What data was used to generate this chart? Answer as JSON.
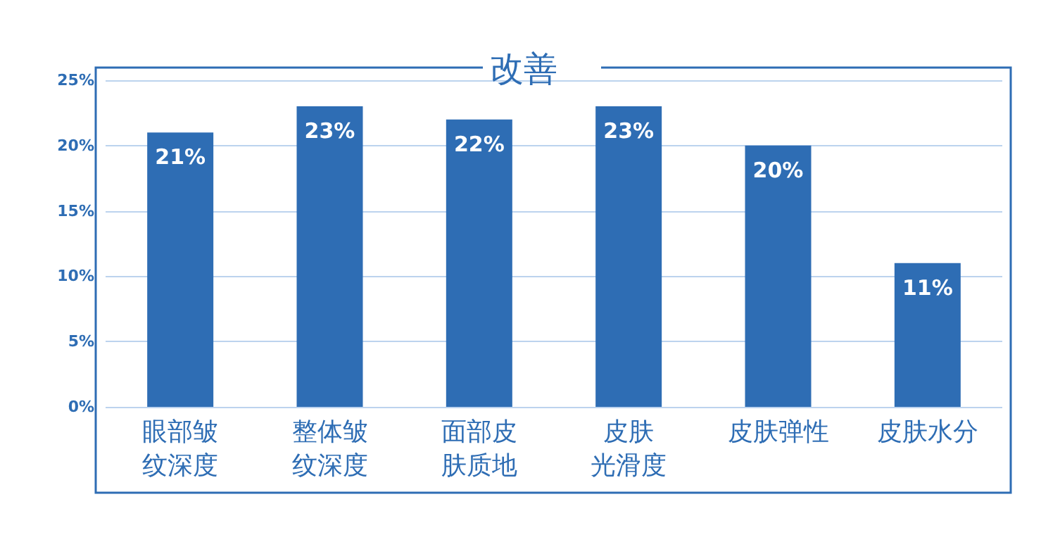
{
  "chart_data": {
    "type": "bar",
    "title": "改善",
    "categories": [
      "眼部皱纹深度",
      "整体皱纹深度",
      "面部皮肤质地",
      "皮肤光滑度",
      "皮肤弹性",
      "皮肤水分"
    ],
    "values": [
      21,
      23,
      22,
      23,
      20,
      11
    ],
    "color": "#2e6db4",
    "value_labels": [
      "21%",
      "23%",
      "22%",
      "23%",
      "20%",
      "11%"
    ],
    "ylim": [
      0,
      25
    ],
    "yticks": [
      {
        "value": 0,
        "label": "0%"
      },
      {
        "value": 5,
        "label": "5%"
      },
      {
        "value": 10,
        "label": "10%"
      },
      {
        "value": 15,
        "label": "15%"
      },
      {
        "value": 20,
        "label": "20%"
      },
      {
        "value": 25,
        "label": "25%"
      }
    ],
    "grid": "y"
  }
}
